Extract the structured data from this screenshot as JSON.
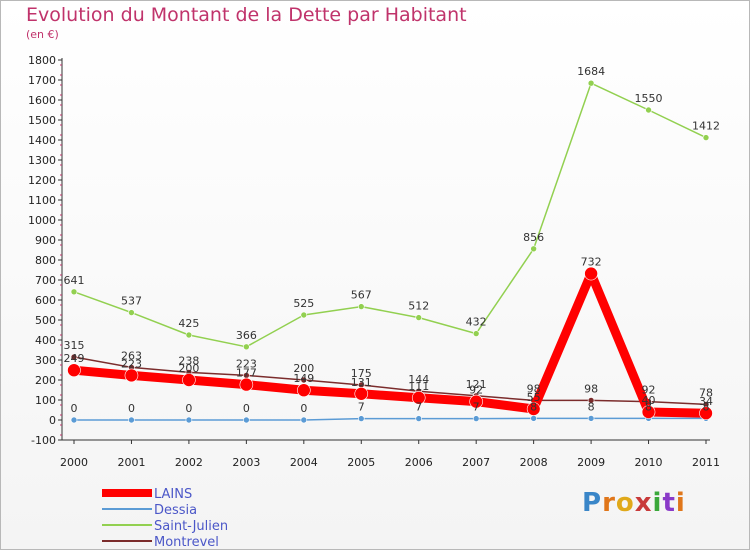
{
  "header": {
    "title": "Evolution du Montant de la Dette par Habitant",
    "subtitle": "(en €)"
  },
  "logo": {
    "text": "Proxiti"
  },
  "chart_data": {
    "type": "line",
    "title": "Evolution du Montant de la Dette par Habitant",
    "subtitle": "(en €)",
    "x": [
      "2000",
      "2001",
      "2002",
      "2003",
      "2004",
      "2005",
      "2006",
      "2007",
      "2008",
      "2009",
      "2010",
      "2011"
    ],
    "yticks": [
      -100,
      0,
      100,
      200,
      300,
      400,
      500,
      600,
      700,
      800,
      900,
      1000,
      1100,
      1200,
      1300,
      1400,
      1500,
      1600,
      1700,
      1800
    ],
    "ylim": [
      -100,
      1800
    ],
    "grid": false,
    "legend_position": "bottom-left",
    "series": [
      {
        "name": "LAINS",
        "color": "#ff0000",
        "values": [
          249,
          223,
          200,
          177,
          149,
          131,
          111,
          92,
          55,
          732,
          40,
          34
        ]
      },
      {
        "name": "Dessia",
        "color": "#5b9bd5",
        "values": [
          0,
          0,
          0,
          0,
          0,
          7,
          7,
          7,
          8,
          8,
          8,
          8
        ]
      },
      {
        "name": "Saint-Julien",
        "color": "#92d050",
        "values": [
          641,
          537,
          425,
          366,
          525,
          567,
          512,
          432,
          856,
          1684,
          1550,
          1412
        ]
      },
      {
        "name": "Montrevel",
        "color": "#7b2c2c",
        "values": [
          315,
          263,
          238,
          223,
          200,
          175,
          144,
          121,
          98,
          98,
          92,
          78
        ]
      }
    ]
  }
}
